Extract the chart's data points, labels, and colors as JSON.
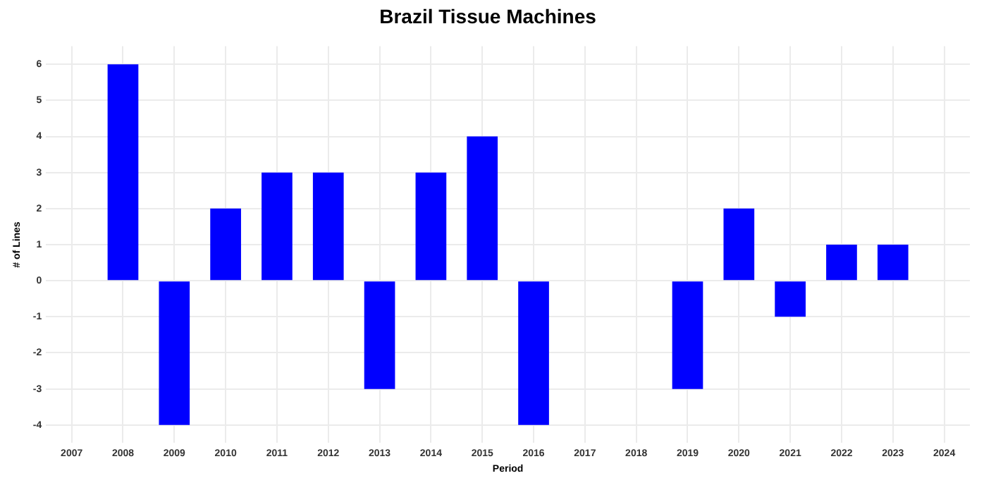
{
  "chart_data": {
    "type": "bar",
    "title": "Brazil Tissue Machines",
    "xlabel": "Period",
    "ylabel": "# of Lines",
    "categories": [
      "2007",
      "2008",
      "2009",
      "2010",
      "2011",
      "2012",
      "2013",
      "2014",
      "2015",
      "2016",
      "2017",
      "2018",
      "2019",
      "2020",
      "2021",
      "2022",
      "2023",
      "2024"
    ],
    "values": [
      null,
      6,
      -4,
      2,
      3,
      3,
      -3,
      3,
      4,
      -4,
      null,
      null,
      -3,
      2,
      -1,
      1,
      1,
      null
    ],
    "color": "#0000ff",
    "ylim": [
      -4.5,
      6.5
    ],
    "yticks": [
      -4,
      -3,
      -2,
      -1,
      0,
      1,
      2,
      3,
      4,
      5,
      6
    ],
    "grid": true
  }
}
